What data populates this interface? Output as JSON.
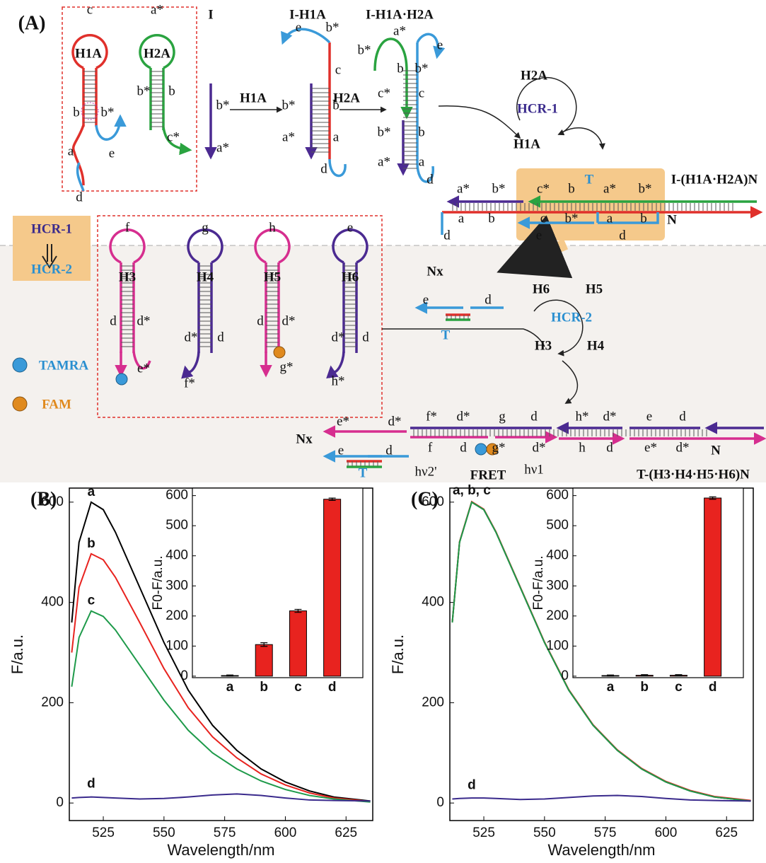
{
  "diagram": {
    "labels": [
      "(A)",
      "c",
      "H1A",
      "a*",
      "H2A",
      "b",
      "b*",
      "b*",
      "b",
      "a",
      "e",
      "c*",
      "d",
      "I",
      "b*",
      "a*",
      "H1A",
      "I-H1A",
      "e",
      "b*",
      "c",
      "b*",
      "b",
      "a*",
      "a",
      "d",
      "H2A",
      "I-H1A·H2A",
      "a*",
      "b*",
      "b",
      "b*",
      "e",
      "c*",
      "c",
      "b*",
      "b",
      "a*",
      "a",
      "d",
      "H2A",
      "HCR-1",
      "H1A",
      "T",
      "I-(H1A·H2A)N",
      "a*",
      "b*",
      "c*",
      "b",
      "a*",
      "b*",
      "a",
      "b",
      "c",
      "b*",
      "a",
      "b",
      "N",
      "d",
      "e",
      "d",
      "HCR-1",
      "HCR-2",
      "f",
      "H3",
      "g",
      "H4",
      "h",
      "H5",
      "e",
      "H6",
      "d",
      "d*",
      "e*",
      "d*",
      "d",
      "f*",
      "d",
      "d*",
      "g*",
      "d*",
      "d",
      "h*",
      "TAMRA",
      "FAM",
      "Nx",
      "e",
      "d",
      "T",
      "H6",
      "H5",
      "HCR-2",
      "H3",
      "H4",
      "Nx",
      "e*",
      "d*",
      "e",
      "d",
      "T",
      "f*",
      "d*",
      "g",
      "d",
      "f",
      "d",
      "g*",
      "d*",
      "hν2'",
      "FRET",
      "hν1",
      "h*",
      "d*",
      "h",
      "d",
      "e",
      "d",
      "e*",
      "d*",
      "N",
      "T-(H3·H4·H5·H6)N"
    ]
  },
  "chart_data": [
    {
      "type": "line",
      "label": "(B)",
      "x_label": "Wavelength/nm",
      "y_label": "F/a.u.",
      "xlim": [
        511,
        636
      ],
      "ylim": [
        -35,
        628
      ],
      "xticks": [
        525,
        550,
        575,
        600,
        625
      ],
      "yticks": [
        0,
        200,
        400,
        600
      ],
      "x": [
        512,
        515,
        520,
        525,
        530,
        540,
        550,
        560,
        570,
        580,
        590,
        600,
        610,
        620,
        635
      ],
      "series": [
        {
          "name": "a",
          "color": "#000000",
          "values": [
            360,
            520,
            600,
            585,
            540,
            430,
            320,
            225,
            155,
            105,
            68,
            42,
            24,
            12,
            4
          ]
        },
        {
          "name": "b",
          "color": "#e8231f",
          "values": [
            300,
            430,
            497,
            485,
            450,
            360,
            268,
            190,
            132,
            90,
            58,
            36,
            20,
            10,
            3
          ]
        },
        {
          "name": "c",
          "color": "#1e9a4a",
          "values": [
            232,
            330,
            383,
            372,
            345,
            275,
            205,
            145,
            100,
            68,
            44,
            27,
            15,
            8,
            2
          ]
        },
        {
          "name": "d",
          "color": "#3a2a8c",
          "values": [
            10,
            11,
            12,
            11,
            10,
            8,
            9,
            12,
            16,
            18,
            15,
            10,
            6,
            5,
            4
          ]
        }
      ],
      "inset": {
        "type": "bar",
        "y_label": "F0-F/a.u.",
        "categories": [
          "a",
          "b",
          "c",
          "d"
        ],
        "values": [
          2,
          105,
          217,
          588
        ],
        "errors": [
          2,
          6,
          5,
          4
        ],
        "color": "#e8231f",
        "ylim": [
          -5,
          625
        ],
        "yticks": [
          0,
          100,
          200,
          300,
          400,
          500,
          600
        ]
      }
    },
    {
      "type": "line",
      "label": "(C)",
      "x_label": "Wavelength/nm",
      "y_label": "F/a.u.",
      "annotation": "a, b, c",
      "xlim": [
        511,
        636
      ],
      "ylim": [
        -35,
        628
      ],
      "xticks": [
        525,
        550,
        575,
        600,
        625
      ],
      "yticks": [
        0,
        200,
        400,
        600
      ],
      "x": [
        512,
        515,
        520,
        525,
        530,
        540,
        550,
        560,
        570,
        580,
        590,
        600,
        610,
        620,
        635
      ],
      "series": [
        {
          "color": "#000000",
          "values": [
            360,
            520,
            600,
            585,
            540,
            430,
            320,
            225,
            155,
            105,
            68,
            42,
            24,
            12,
            4
          ]
        },
        {
          "color": "#e8231f",
          "values": [
            360,
            521,
            601,
            586,
            541,
            431,
            321,
            226,
            156,
            106,
            69,
            43,
            25,
            13,
            5
          ]
        },
        {
          "color": "#1e9a4a",
          "values": [
            360,
            520,
            600,
            585,
            540,
            430,
            320,
            225,
            155,
            105,
            68,
            42,
            24,
            12,
            4
          ]
        },
        {
          "name": "d",
          "color": "#3a2a8c",
          "values": [
            8,
            9,
            10,
            10,
            9,
            7,
            8,
            11,
            14,
            15,
            13,
            9,
            6,
            5,
            4
          ]
        }
      ],
      "inset": {
        "type": "bar",
        "y_label": "F0-F/a.u.",
        "categories": [
          "a",
          "b",
          "c",
          "d"
        ],
        "values": [
          2,
          3,
          3,
          592
        ],
        "errors": [
          2,
          2,
          2,
          4
        ],
        "color": "#e8231f",
        "ylim": [
          -5,
          625
        ],
        "yticks": [
          0,
          100,
          200,
          300,
          400,
          500,
          600
        ]
      }
    }
  ]
}
